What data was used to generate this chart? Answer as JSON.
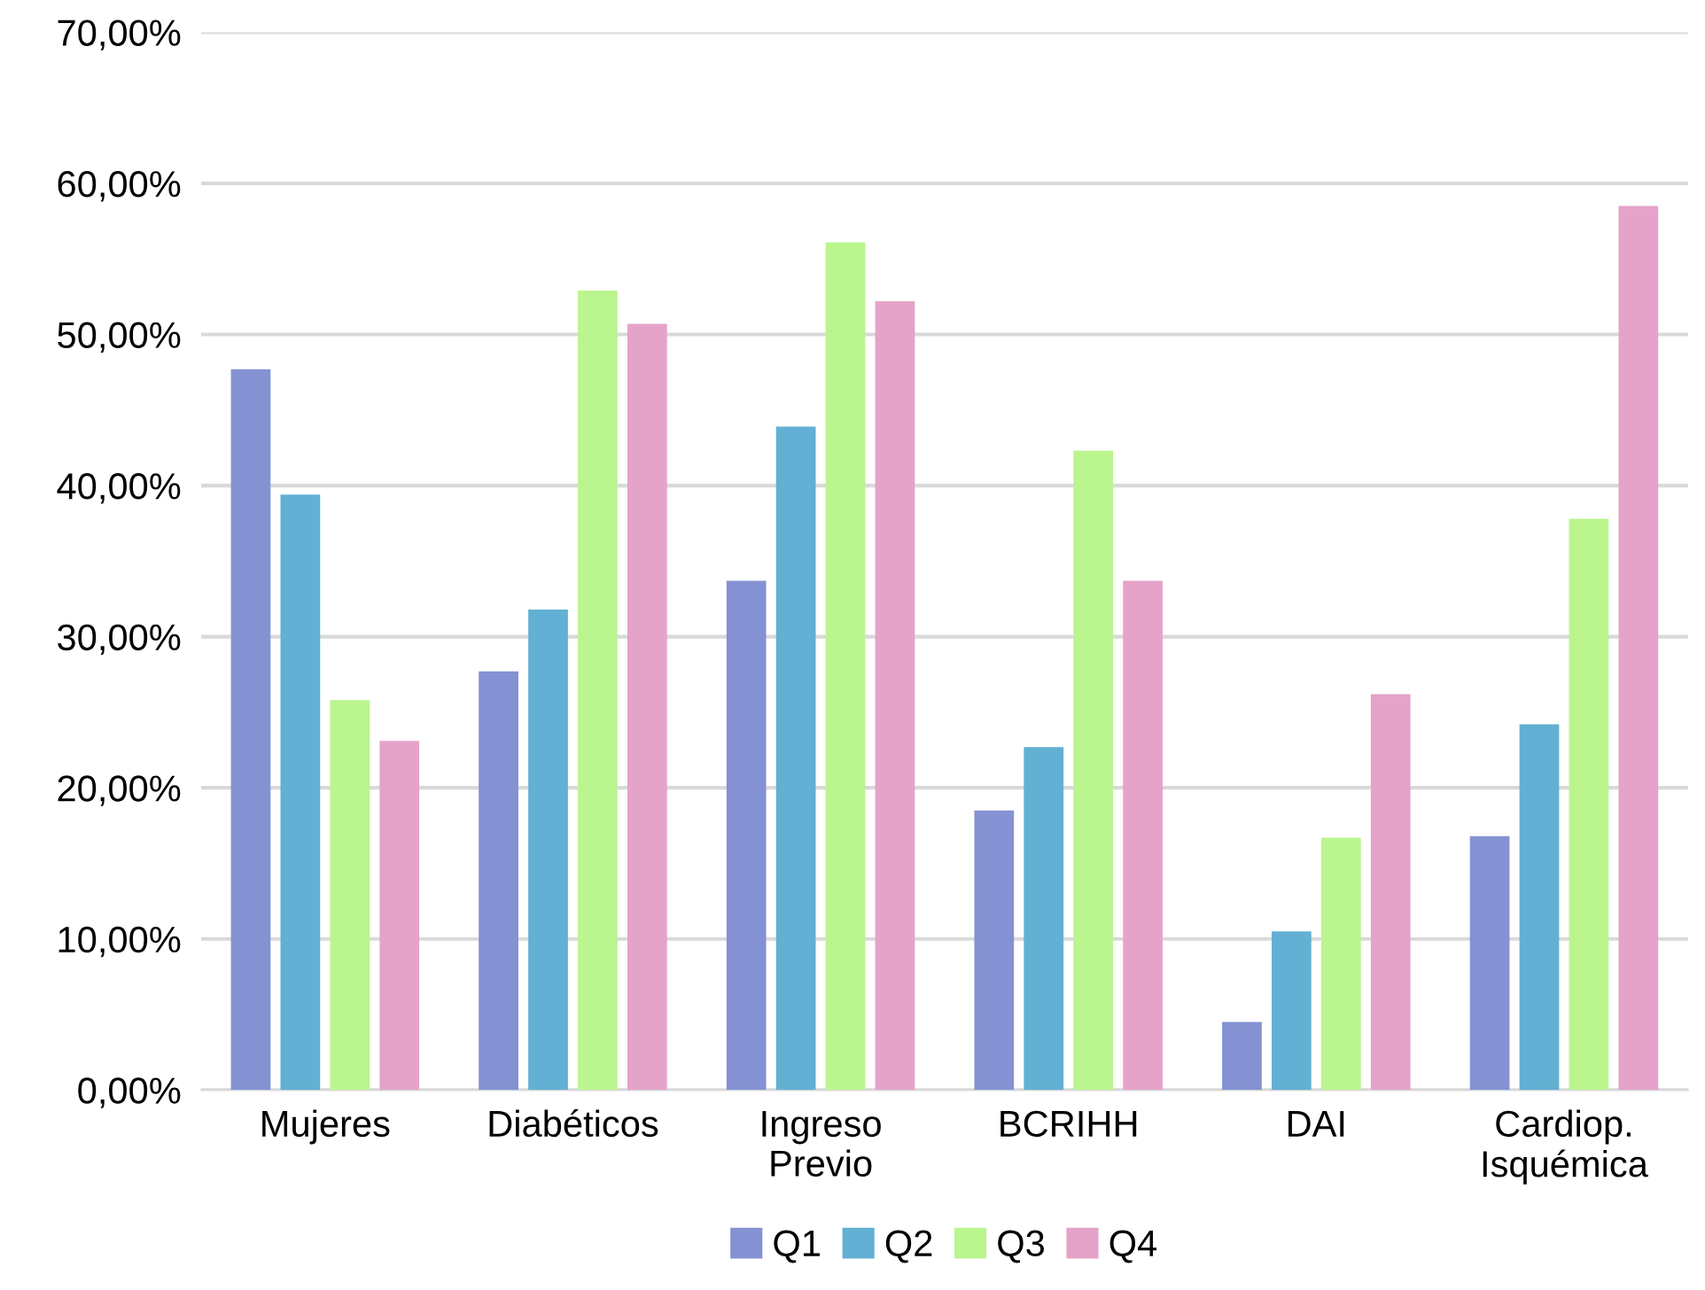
{
  "chart_data": {
    "type": "bar",
    "categories": [
      "Mujeres",
      "Diabéticos",
      "Ingreso\nPrevio",
      "BCRIHH",
      "DAI",
      "Cardiop.\nIsquémica"
    ],
    "series": [
      {
        "name": "Q1",
        "color": "#8492d3",
        "values": [
          47.7,
          27.7,
          33.7,
          18.5,
          4.5,
          16.8
        ]
      },
      {
        "name": "Q2",
        "color": "#62b0d3",
        "values": [
          39.4,
          31.8,
          43.9,
          22.7,
          10.5,
          24.2
        ]
      },
      {
        "name": "Q3",
        "color": "#baf58e",
        "values": [
          25.8,
          52.9,
          56.1,
          42.3,
          16.7,
          37.8
        ]
      },
      {
        "name": "Q4",
        "color": "#e5a3c9",
        "values": [
          23.1,
          50.7,
          52.2,
          33.7,
          26.2,
          58.5
        ]
      }
    ],
    "ylim": [
      0,
      70
    ],
    "yticks": [
      {
        "value": 0,
        "label": "0,00%"
      },
      {
        "value": 10,
        "label": "10,00%"
      },
      {
        "value": 20,
        "label": "20,00%"
      },
      {
        "value": 30,
        "label": "30,00%"
      },
      {
        "value": 40,
        "label": "40,00%"
      },
      {
        "value": 50,
        "label": "50,00%"
      },
      {
        "value": 60,
        "label": "60,00%"
      },
      {
        "value": 70,
        "label": "70,00%"
      }
    ],
    "grid": "y",
    "legend": "bottom"
  }
}
